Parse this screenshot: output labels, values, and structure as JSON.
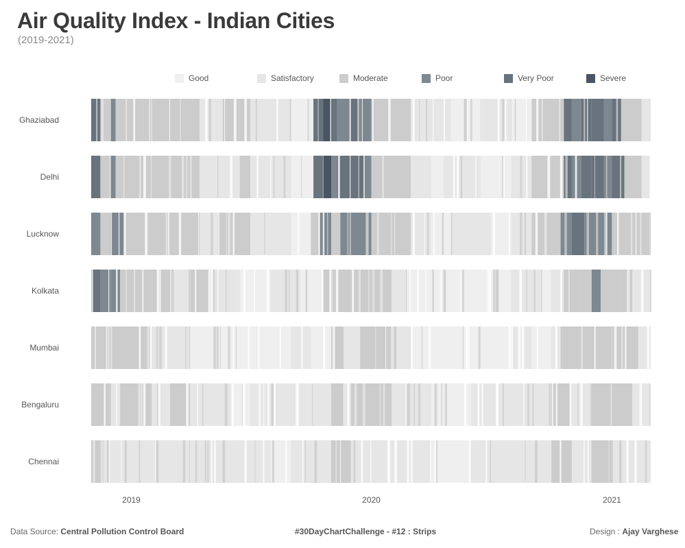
{
  "title": "Air Quality Index - Indian Cities",
  "subtitle": "(2019-2021)",
  "legend": [
    {
      "label": "Good",
      "color": "#efefef"
    },
    {
      "label": "Satisfactory",
      "color": "#e6e6e6"
    },
    {
      "label": "Moderate",
      "color": "#cccccc"
    },
    {
      "label": "Poor",
      "color": "#7e8891"
    },
    {
      "label": "Very Poor",
      "color": "#68737d"
    },
    {
      "label": "Severe",
      "color": "#495562"
    }
  ],
  "footer": {
    "source_prefix": "Data Source: ",
    "source_name": "Central Pollution Control Board",
    "challenge": "#30DayChartChallenge - #12 : Strips",
    "design_prefix": "Design : ",
    "design_name": "Ajay Varghese"
  },
  "chart_data": {
    "type": "heatmap",
    "x_ticks": [
      "2019",
      "2020",
      "2021"
    ],
    "x_tick_dates": [
      "2019-01-01",
      "2020-01-01",
      "2021-01-01"
    ],
    "x_range": [
      "2018-11-01",
      "2021-03-01"
    ],
    "categories": [
      "Severe",
      "Very Poor",
      "Poor",
      "Moderate",
      "Satisfactory",
      "Good"
    ],
    "cities": [
      {
        "name": "Ghaziabad",
        "strips": [
          [
            "2018-11-01",
            "Very Poor"
          ],
          [
            "2018-11-15",
            "Moderate"
          ],
          [
            "2018-12-01",
            "Poor"
          ],
          [
            "2018-12-08",
            "Moderate"
          ],
          [
            "2019-01-01",
            "Moderate"
          ],
          [
            "2019-01-20",
            "Moderate"
          ],
          [
            "2019-03-01",
            "Moderate"
          ],
          [
            "2019-04-15",
            "Satisfactory"
          ],
          [
            "2019-05-20",
            "Moderate"
          ],
          [
            "2019-06-15",
            "Moderate"
          ],
          [
            "2019-07-01",
            "Satisfactory"
          ],
          [
            "2019-09-01",
            "Good"
          ],
          [
            "2019-10-05",
            "Very Poor"
          ],
          [
            "2019-10-20",
            "Severe"
          ],
          [
            "2019-11-01",
            "Very Poor"
          ],
          [
            "2019-11-10",
            "Poor"
          ],
          [
            "2019-12-01",
            "Very Poor"
          ],
          [
            "2019-12-15",
            "Poor"
          ],
          [
            "2020-01-01",
            "Moderate"
          ],
          [
            "2020-02-01",
            "Moderate"
          ],
          [
            "2020-03-01",
            "Satisfactory"
          ],
          [
            "2020-04-01",
            "Satisfactory"
          ],
          [
            "2020-05-01",
            "Good"
          ],
          [
            "2020-06-15",
            "Satisfactory"
          ],
          [
            "2020-08-01",
            "Good"
          ],
          [
            "2020-09-01",
            "Moderate"
          ],
          [
            "2020-10-01",
            "Moderate"
          ],
          [
            "2020-10-20",
            "Very Poor"
          ],
          [
            "2020-11-01",
            "Poor"
          ],
          [
            "2020-11-15",
            "Very Poor"
          ],
          [
            "2020-12-01",
            "Very Poor"
          ],
          [
            "2020-12-20",
            "Poor"
          ],
          [
            "2021-01-01",
            "Very Poor"
          ],
          [
            "2021-01-15",
            "Moderate"
          ],
          [
            "2021-02-15",
            "Satisfactory"
          ]
        ]
      },
      {
        "name": "Delhi",
        "strips": [
          [
            "2018-11-01",
            "Very Poor"
          ],
          [
            "2018-11-15",
            "Moderate"
          ],
          [
            "2018-12-01",
            "Poor"
          ],
          [
            "2018-12-08",
            "Moderate"
          ],
          [
            "2019-01-01",
            "Moderate"
          ],
          [
            "2019-02-01",
            "Moderate"
          ],
          [
            "2019-03-15",
            "Moderate"
          ],
          [
            "2019-04-15",
            "Satisfactory"
          ],
          [
            "2019-06-15",
            "Moderate"
          ],
          [
            "2019-07-01",
            "Satisfactory"
          ],
          [
            "2019-09-01",
            "Good"
          ],
          [
            "2019-10-05",
            "Very Poor"
          ],
          [
            "2019-10-20",
            "Severe"
          ],
          [
            "2019-11-01",
            "Poor"
          ],
          [
            "2019-11-10",
            "Very Poor"
          ],
          [
            "2019-12-01",
            "Very Poor"
          ],
          [
            "2019-12-20",
            "Poor"
          ],
          [
            "2020-01-01",
            "Moderate"
          ],
          [
            "2020-02-01",
            "Moderate"
          ],
          [
            "2020-03-01",
            "Satisfactory"
          ],
          [
            "2020-04-01",
            "Good"
          ],
          [
            "2020-04-20",
            "Satisfactory"
          ],
          [
            "2020-06-15",
            "Good"
          ],
          [
            "2020-08-01",
            "Satisfactory"
          ],
          [
            "2020-09-01",
            "Moderate"
          ],
          [
            "2020-10-01",
            "Moderate"
          ],
          [
            "2020-10-20",
            "Very Poor"
          ],
          [
            "2020-11-01",
            "Poor"
          ],
          [
            "2020-11-15",
            "Very Poor"
          ],
          [
            "2020-12-01",
            "Very Poor"
          ],
          [
            "2020-12-20",
            "Poor"
          ],
          [
            "2021-01-01",
            "Very Poor"
          ],
          [
            "2021-01-20",
            "Moderate"
          ],
          [
            "2021-02-15",
            "Satisfactory"
          ]
        ]
      },
      {
        "name": "Lucknow",
        "strips": [
          [
            "2018-11-01",
            "Poor"
          ],
          [
            "2018-11-15",
            "Moderate"
          ],
          [
            "2018-12-01",
            "Poor"
          ],
          [
            "2018-12-20",
            "Moderate"
          ],
          [
            "2019-01-01",
            "Moderate"
          ],
          [
            "2019-02-01",
            "Moderate"
          ],
          [
            "2019-03-01",
            "Moderate"
          ],
          [
            "2019-04-15",
            "Satisfactory"
          ],
          [
            "2019-05-15",
            "Moderate"
          ],
          [
            "2019-06-01",
            "Moderate"
          ],
          [
            "2019-07-01",
            "Satisfactory"
          ],
          [
            "2019-09-01",
            "Good"
          ],
          [
            "2019-10-01",
            "Moderate"
          ],
          [
            "2019-10-15",
            "Poor"
          ],
          [
            "2019-11-01",
            "Moderate"
          ],
          [
            "2019-11-15",
            "Poor"
          ],
          [
            "2019-12-01",
            "Poor"
          ],
          [
            "2020-01-01",
            "Moderate"
          ],
          [
            "2020-02-01",
            "Moderate"
          ],
          [
            "2020-03-01",
            "Satisfactory"
          ],
          [
            "2020-04-01",
            "Good"
          ],
          [
            "2020-05-01",
            "Satisfactory"
          ],
          [
            "2020-07-01",
            "Good"
          ],
          [
            "2020-08-01",
            "Satisfactory"
          ],
          [
            "2020-09-01",
            "Moderate"
          ],
          [
            "2020-10-01",
            "Moderate"
          ],
          [
            "2020-10-15",
            "Poor"
          ],
          [
            "2020-11-01",
            "Very Poor"
          ],
          [
            "2020-11-20",
            "Poor"
          ],
          [
            "2020-12-15",
            "Poor"
          ],
          [
            "2021-01-01",
            "Moderate"
          ],
          [
            "2021-02-01",
            "Moderate"
          ]
        ]
      },
      {
        "name": "Kolkata",
        "strips": [
          [
            "2018-11-01",
            "Very Poor"
          ],
          [
            "2018-11-15",
            "Poor"
          ],
          [
            "2018-12-01",
            "Poor"
          ],
          [
            "2018-12-15",
            "Moderate"
          ],
          [
            "2019-01-01",
            "Moderate"
          ],
          [
            "2019-02-01",
            "Moderate"
          ],
          [
            "2019-03-01",
            "Satisfactory"
          ],
          [
            "2019-04-01",
            "Moderate"
          ],
          [
            "2019-05-01",
            "Satisfactory"
          ],
          [
            "2019-06-15",
            "Good"
          ],
          [
            "2019-08-01",
            "Satisfactory"
          ],
          [
            "2019-09-15",
            "Good"
          ],
          [
            "2019-10-20",
            "Moderate"
          ],
          [
            "2019-11-01",
            "Moderate"
          ],
          [
            "2019-12-01",
            "Moderate"
          ],
          [
            "2020-01-01",
            "Moderate"
          ],
          [
            "2020-02-01",
            "Satisfactory"
          ],
          [
            "2020-03-01",
            "Good"
          ],
          [
            "2020-05-01",
            "Good"
          ],
          [
            "2020-07-01",
            "Good"
          ],
          [
            "2020-08-01",
            "Satisfactory"
          ],
          [
            "2020-09-15",
            "Good"
          ],
          [
            "2020-10-01",
            "Satisfactory"
          ],
          [
            "2020-10-20",
            "Moderate"
          ],
          [
            "2020-11-15",
            "Moderate"
          ],
          [
            "2020-12-01",
            "Poor"
          ],
          [
            "2020-12-15",
            "Moderate"
          ],
          [
            "2021-01-15",
            "Moderate"
          ],
          [
            "2021-02-01",
            "Satisfactory"
          ]
        ]
      },
      {
        "name": "Mumbai",
        "strips": [
          [
            "2018-11-01",
            "Moderate"
          ],
          [
            "2018-12-15",
            "Moderate"
          ],
          [
            "2019-01-01",
            "Moderate"
          ],
          [
            "2019-02-01",
            "Satisfactory"
          ],
          [
            "2019-03-01",
            "Satisfactory"
          ],
          [
            "2019-04-01",
            "Good"
          ],
          [
            "2019-06-01",
            "Good"
          ],
          [
            "2019-07-01",
            "Good"
          ],
          [
            "2019-08-01",
            "Good"
          ],
          [
            "2019-09-01",
            "Satisfactory"
          ],
          [
            "2019-10-01",
            "Good"
          ],
          [
            "2019-11-01",
            "Moderate"
          ],
          [
            "2019-11-20",
            "Satisfactory"
          ],
          [
            "2019-12-15",
            "Moderate"
          ],
          [
            "2020-01-01",
            "Moderate"
          ],
          [
            "2020-02-01",
            "Satisfactory"
          ],
          [
            "2020-03-01",
            "Good"
          ],
          [
            "2020-05-01",
            "Good"
          ],
          [
            "2020-07-01",
            "Good"
          ],
          [
            "2020-08-01",
            "Satisfactory"
          ],
          [
            "2020-09-01",
            "Good"
          ],
          [
            "2020-10-01",
            "Satisfactory"
          ],
          [
            "2020-10-15",
            "Moderate"
          ],
          [
            "2020-12-01",
            "Moderate"
          ],
          [
            "2021-01-01",
            "Moderate"
          ],
          [
            "2021-02-10",
            "Satisfactory"
          ]
        ]
      },
      {
        "name": "Bengaluru",
        "strips": [
          [
            "2018-11-01",
            "Moderate"
          ],
          [
            "2018-12-01",
            "Satisfactory"
          ],
          [
            "2018-12-15",
            "Moderate"
          ],
          [
            "2019-01-01",
            "Moderate"
          ],
          [
            "2019-02-01",
            "Satisfactory"
          ],
          [
            "2019-03-01",
            "Moderate"
          ],
          [
            "2019-04-01",
            "Satisfactory"
          ],
          [
            "2019-05-01",
            "Satisfactory"
          ],
          [
            "2019-06-01",
            "Good"
          ],
          [
            "2019-07-01",
            "Satisfactory"
          ],
          [
            "2019-08-01",
            "Satisfactory"
          ],
          [
            "2019-09-01",
            "Satisfactory"
          ],
          [
            "2019-10-01",
            "Satisfactory"
          ],
          [
            "2019-11-01",
            "Moderate"
          ],
          [
            "2019-11-20",
            "Satisfactory"
          ],
          [
            "2019-12-01",
            "Moderate"
          ],
          [
            "2020-01-01",
            "Moderate"
          ],
          [
            "2020-02-01",
            "Satisfactory"
          ],
          [
            "2020-03-01",
            "Satisfactory"
          ],
          [
            "2020-04-01",
            "Good"
          ],
          [
            "2020-06-01",
            "Satisfactory"
          ],
          [
            "2020-08-01",
            "Satisfactory"
          ],
          [
            "2020-09-01",
            "Satisfactory"
          ],
          [
            "2020-10-01",
            "Moderate"
          ],
          [
            "2020-11-01",
            "Satisfactory"
          ],
          [
            "2020-12-01",
            "Moderate"
          ],
          [
            "2021-01-01",
            "Moderate"
          ],
          [
            "2021-02-01",
            "Satisfactory"
          ]
        ]
      },
      {
        "name": "Chennai",
        "strips": [
          [
            "2018-11-01",
            "Moderate"
          ],
          [
            "2018-11-20",
            "Satisfactory"
          ],
          [
            "2018-12-15",
            "Satisfactory"
          ],
          [
            "2019-01-01",
            "Satisfactory"
          ],
          [
            "2019-02-01",
            "Satisfactory"
          ],
          [
            "2019-03-01",
            "Satisfactory"
          ],
          [
            "2019-04-01",
            "Satisfactory"
          ],
          [
            "2019-05-01",
            "Satisfactory"
          ],
          [
            "2019-06-01",
            "Satisfactory"
          ],
          [
            "2019-07-01",
            "Satisfactory"
          ],
          [
            "2019-08-01",
            "Good"
          ],
          [
            "2019-09-01",
            "Satisfactory"
          ],
          [
            "2019-10-01",
            "Satisfactory"
          ],
          [
            "2019-11-01",
            "Moderate"
          ],
          [
            "2019-12-01",
            "Satisfactory"
          ],
          [
            "2020-01-01",
            "Satisfactory"
          ],
          [
            "2020-02-01",
            "Satisfactory"
          ],
          [
            "2020-03-01",
            "Satisfactory"
          ],
          [
            "2020-04-01",
            "Good"
          ],
          [
            "2020-06-01",
            "Satisfactory"
          ],
          [
            "2020-08-01",
            "Satisfactory"
          ],
          [
            "2020-09-01",
            "Satisfactory"
          ],
          [
            "2020-10-01",
            "Moderate"
          ],
          [
            "2020-11-01",
            "Satisfactory"
          ],
          [
            "2020-12-01",
            "Moderate"
          ],
          [
            "2021-01-01",
            "Satisfactory"
          ],
          [
            "2021-02-01",
            "Satisfactory"
          ]
        ]
      }
    ]
  }
}
